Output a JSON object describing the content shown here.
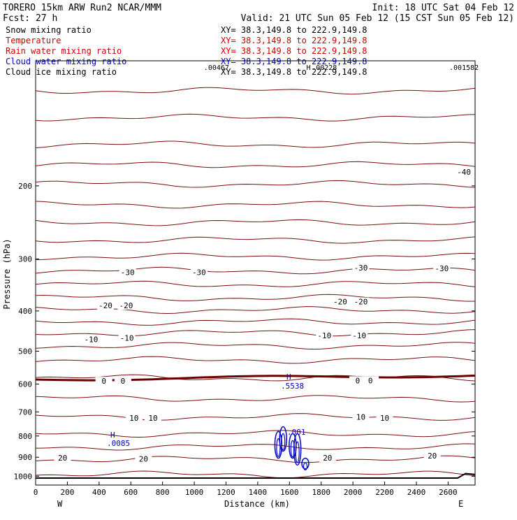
{
  "header": {
    "left1": "TORERO  15km ARW   Run2    NCAR/MMM",
    "left2": "Fcst:    27 h",
    "right1": "Init: 18 UTC Sat 04 Feb 12",
    "right2": "Valid: 21 UTC Sun 05 Feb 12 (15 CST Sun 05 Feb 12)"
  },
  "legend": [
    {
      "label": "Snow mixing ratio",
      "xy": "XY=  38.3,149.8 to 222.9,149.8",
      "label_color": "#000000",
      "xy_color": "#000000"
    },
    {
      "label": "Temperature",
      "xy": "XY=  38.3,149.8 to 222.9,149.8",
      "label_color": "#cc0000",
      "xy_color": "#cc0000"
    },
    {
      "label": "Rain water mixing ratio",
      "xy": "XY=  38.3,149.8 to 222.9,149.8",
      "label_color": "#cc0000",
      "xy_color": "#cc0000"
    },
    {
      "label": "Cloud water mixing ratio",
      "xy": "XY=  38.3,149.8 to 222.9,149.8",
      "label_color": "#0000cc",
      "xy_color": "#0000cc"
    },
    {
      "label": "Cloud ice mixing ratio",
      "xy": "XY=  38.3,149.8 to 222.9,149.8",
      "label_color": "#000000",
      "xy_color": "#000000"
    }
  ],
  "colors": {
    "temperature": "#7a0c0c",
    "temperature_zero": "#6b0000",
    "cloud_water": "#0000cc",
    "terrain": "#000000",
    "axis": "#000000"
  },
  "chart_data": {
    "type": "contour-cross-section",
    "xlabel": "Distance (km)",
    "ylabel": "Pressure (hPa)",
    "xlim": [
      0,
      2770
    ],
    "ylim_pressure": [
      100,
      1050
    ],
    "y_scale": "log",
    "x_ticks": [
      0,
      200,
      400,
      600,
      800,
      1000,
      1200,
      1400,
      1600,
      1800,
      2000,
      2200,
      2400,
      2600
    ],
    "y_ticks": [
      200,
      300,
      400,
      500,
      600,
      700,
      800,
      900,
      1000
    ],
    "x_end_labels": {
      "left": "W",
      "right": "E"
    },
    "isotherm_pressures": [
      118,
      137,
      159,
      178,
      198,
      222,
      245,
      270,
      296,
      320,
      345,
      372,
      398,
      425,
      452,
      485,
      525,
      580,
      650,
      720,
      790,
      850,
      910,
      990
    ],
    "zero_isotherm_pressure": 585,
    "isotherm_labels": [
      {
        "text": "-40",
        "x": 2700,
        "p": 185
      },
      {
        "text": "-30",
        "x": 580,
        "p": 323
      },
      {
        "text": "-30",
        "x": 1030,
        "p": 323
      },
      {
        "text": "-30",
        "x": 2050,
        "p": 315
      },
      {
        "text": "-30",
        "x": 2560,
        "p": 316
      },
      {
        "text": "-20",
        "x": 440,
        "p": 388
      },
      {
        "text": "-20",
        "x": 570,
        "p": 388
      },
      {
        "text": "-20",
        "x": 1920,
        "p": 380
      },
      {
        "text": "-20",
        "x": 2050,
        "p": 380
      },
      {
        "text": "-10",
        "x": 350,
        "p": 468
      },
      {
        "text": "-10",
        "x": 575,
        "p": 465
      },
      {
        "text": "-10",
        "x": 1820,
        "p": 458
      },
      {
        "text": "-10",
        "x": 2040,
        "p": 458
      },
      {
        "text": "0",
        "x": 430,
        "p": 590
      },
      {
        "text": "0",
        "x": 550,
        "p": 590
      },
      {
        "text": "0",
        "x": 2030,
        "p": 588
      },
      {
        "text": "0",
        "x": 2110,
        "p": 588
      },
      {
        "text": "10",
        "x": 620,
        "p": 724
      },
      {
        "text": "10",
        "x": 740,
        "p": 724
      },
      {
        "text": "10",
        "x": 2050,
        "p": 720
      },
      {
        "text": "10",
        "x": 2200,
        "p": 724
      },
      {
        "text": "20",
        "x": 170,
        "p": 903
      },
      {
        "text": "20",
        "x": 680,
        "p": 908
      },
      {
        "text": "20",
        "x": 1840,
        "p": 903
      },
      {
        "text": "20",
        "x": 2500,
        "p": 893
      }
    ],
    "cloud_water": {
      "max_label": "H",
      "max_value": ".5538",
      "secondary_label": "H",
      "secondary_value": ".0085",
      "min_value": ".001",
      "cells": [
        {
          "x": 1530,
          "p_top": 780,
          "p_bottom": 905
        },
        {
          "x": 1560,
          "p_top": 760,
          "p_bottom": 870
        },
        {
          "x": 1620,
          "p_top": 790,
          "p_bottom": 905
        },
        {
          "x": 1650,
          "p_top": 790,
          "p_bottom": 940
        },
        {
          "x": 1700,
          "p_top": 905,
          "p_bottom": 960
        }
      ]
    },
    "top_labels": [
      {
        "text": ".00467",
        "x": 1140
      },
      {
        "text": "H",
        "x": 1720
      },
      {
        "text": ".00228",
        "x": 1820
      },
      {
        "text": ".001582",
        "x": 2700
      }
    ]
  }
}
